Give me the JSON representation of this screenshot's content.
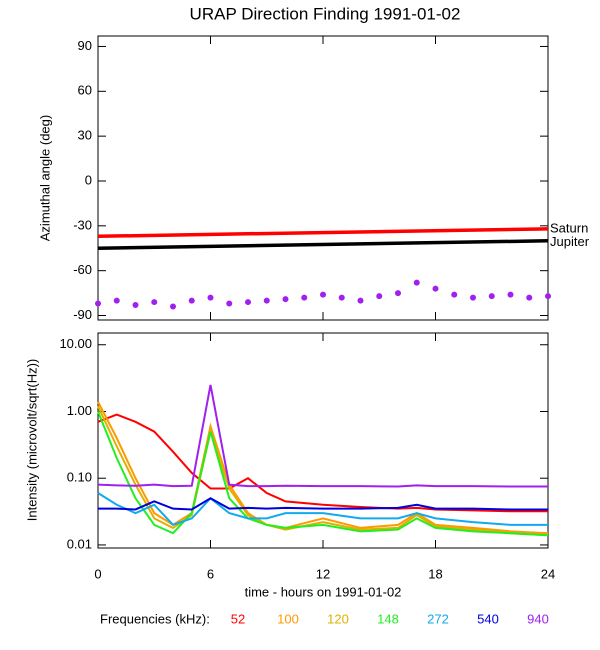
{
  "chart_data": [
    {
      "type": "scatter",
      "title": "URAP Direction Finding  1991-01-02",
      "ylabel": "Azimuthal angle (deg)",
      "xlim": [
        0,
        24
      ],
      "xticks": [
        0,
        6,
        12,
        18,
        24
      ],
      "ylim": [
        -93,
        97
      ],
      "yticks": [
        -90,
        -60,
        -30,
        0,
        30,
        60,
        90
      ],
      "series": [
        {
          "name": "Saturn",
          "color": "#ff0000",
          "mode": "line",
          "x": [
            0,
            24
          ],
          "values": [
            -37,
            -32
          ]
        },
        {
          "name": "Jupiter",
          "color": "#000000",
          "mode": "line",
          "x": [
            0,
            24
          ],
          "values": [
            -45,
            -40
          ]
        },
        {
          "color": "#a020f0",
          "mode": "markers",
          "x": [
            0,
            1,
            2,
            3,
            4,
            5,
            6,
            7,
            8,
            9,
            10,
            11,
            12,
            13,
            14,
            15,
            16,
            17,
            18,
            19,
            20,
            21,
            22,
            23,
            24
          ],
          "values": [
            -82,
            -80,
            -83,
            -81,
            -84,
            -80,
            -78,
            -82,
            -81,
            -80,
            -79,
            -78,
            -76,
            -78,
            -80,
            -77,
            -75,
            -68,
            -72,
            -76,
            -78,
            -77,
            -76,
            -78,
            -77
          ]
        }
      ]
    },
    {
      "type": "line",
      "log_y": true,
      "ylabel": "Intensity (microvolt/sqrt(Hz))",
      "xlabel": "time - hours on 1991-01-02",
      "xlim": [
        0,
        24
      ],
      "xticks": [
        0,
        6,
        12,
        18,
        24
      ],
      "ylim": [
        0.009,
        15
      ],
      "yticks": [
        0.01,
        {
          "value": 0.1,
          "label": "0.10"
        },
        {
          "value": 1,
          "label": "1.00"
        },
        {
          "value": 10,
          "label": "10.00"
        }
      ],
      "legend_title": "Frequencies (kHz):",
      "x": [
        0,
        1,
        2,
        3,
        4,
        5,
        6,
        7,
        8,
        9,
        10,
        12,
        14,
        16,
        17,
        18,
        20,
        22,
        24
      ],
      "series": [
        {
          "name": "52",
          "color": "#ff0000",
          "values": [
            0.7,
            0.9,
            0.7,
            0.5,
            0.25,
            0.12,
            0.07,
            0.07,
            0.1,
            0.06,
            0.045,
            0.04,
            0.037,
            0.035,
            0.036,
            0.034,
            0.033,
            0.032,
            0.032
          ]
        },
        {
          "name": "100",
          "color": "#ff9900",
          "values": [
            1.4,
            0.4,
            0.1,
            0.03,
            0.02,
            0.03,
            0.6,
            0.08,
            0.03,
            0.02,
            0.018,
            0.025,
            0.018,
            0.02,
            0.03,
            0.02,
            0.018,
            0.016,
            0.015
          ]
        },
        {
          "name": "120",
          "color": "#e0b000",
          "values": [
            1.2,
            0.3,
            0.08,
            0.025,
            0.018,
            0.028,
            0.5,
            0.07,
            0.028,
            0.02,
            0.017,
            0.022,
            0.017,
            0.018,
            0.028,
            0.019,
            0.017,
            0.015,
            0.014
          ]
        },
        {
          "name": "148",
          "color": "#22ee22",
          "values": [
            1.0,
            0.2,
            0.05,
            0.02,
            0.015,
            0.03,
            0.5,
            0.05,
            0.025,
            0.02,
            0.018,
            0.02,
            0.016,
            0.017,
            0.025,
            0.018,
            0.016,
            0.015,
            0.014
          ]
        },
        {
          "name": "272",
          "color": "#11aaee",
          "values": [
            0.06,
            0.04,
            0.03,
            0.04,
            0.02,
            0.025,
            0.05,
            0.03,
            0.025,
            0.025,
            0.03,
            0.03,
            0.025,
            0.025,
            0.03,
            0.025,
            0.022,
            0.02,
            0.02
          ]
        },
        {
          "name": "540",
          "color": "#0000dd",
          "values": [
            0.035,
            0.035,
            0.034,
            0.045,
            0.035,
            0.034,
            0.05,
            0.035,
            0.036,
            0.035,
            0.036,
            0.035,
            0.035,
            0.036,
            0.04,
            0.035,
            0.035,
            0.034,
            0.034
          ]
        },
        {
          "name": "940",
          "color": "#a020f0",
          "values": [
            0.08,
            0.078,
            0.077,
            0.08,
            0.076,
            0.077,
            2.5,
            0.08,
            0.076,
            0.076,
            0.077,
            0.076,
            0.076,
            0.075,
            0.078,
            0.076,
            0.076,
            0.075,
            0.075
          ]
        }
      ]
    }
  ]
}
